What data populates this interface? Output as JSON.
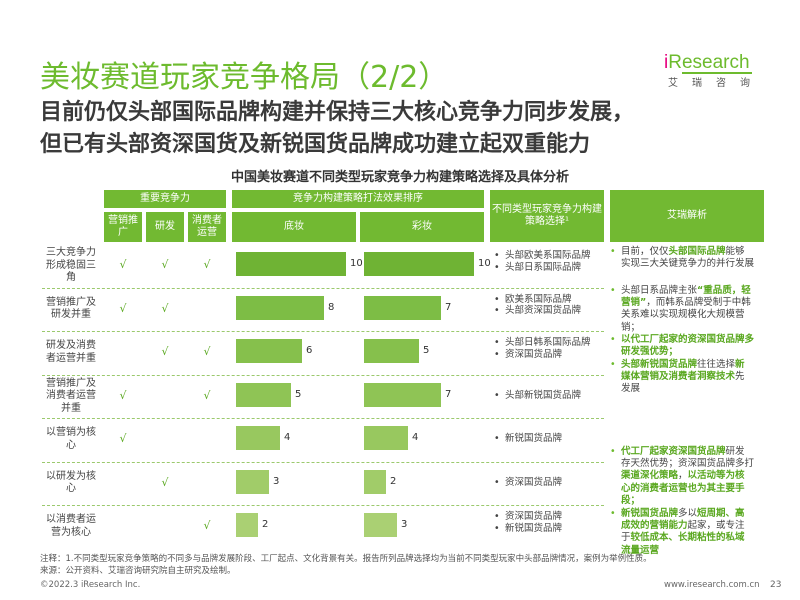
{
  "title": "美妆赛道玩家竞争格局（2/2）",
  "logo": {
    "brand_i": "i",
    "brand_rest": "Research",
    "cn": "艾瑞咨询"
  },
  "subtitle": [
    "目前仍仅头部国际品牌构建并保持三大核心竞争力同步发展，",
    "但已有头部资深国货及新锐国货品牌成功建立起双重能力"
  ],
  "chart_title": "中国美妆赛道不同类型玩家竞争力构建策略选择及具体分析",
  "headers": {
    "core": "重要竞争力",
    "effect": "竞争力构建策略打法效果排序",
    "types": "不同类型玩家竞争力构建策略选择¹",
    "analysis": "艾瑞解析",
    "marketing": "营销推广",
    "rd": "研发",
    "consumer_ops": "消费者运营",
    "base": "底妆",
    "color": "彩妆"
  },
  "check_mark": "√",
  "chart_data": {
    "type": "bar",
    "categories": [
      "三大竞争力形成稳固三角",
      "营销推广及研发并重",
      "研发及消费者运营并重",
      "营销推广及消费者运营并重",
      "以营销为核心",
      "以研发为核心",
      "以消费者运营为核心"
    ],
    "checks": [
      [
        true,
        true,
        true
      ],
      [
        true,
        true,
        false
      ],
      [
        false,
        true,
        true
      ],
      [
        true,
        false,
        true
      ],
      [
        true,
        false,
        false
      ],
      [
        false,
        true,
        false
      ],
      [
        false,
        false,
        true
      ]
    ],
    "series": [
      {
        "name": "底妆",
        "values": [
          10,
          8,
          6,
          5,
          4,
          3,
          2
        ]
      },
      {
        "name": "彩妆",
        "values": [
          10,
          7,
          5,
          7,
          4,
          2,
          3
        ]
      }
    ],
    "xlim": [
      0,
      10
    ]
  },
  "player_types": [
    [
      "头部欧美系国际品牌",
      "头部日系国际品牌"
    ],
    [
      "欧美系国际品牌",
      "头部资深国货品牌"
    ],
    [
      "头部日韩系国际品牌",
      "资深国货品牌"
    ],
    [
      "头部新锐国货品牌"
    ],
    [
      "新锐国货品牌"
    ],
    [
      "资深国货品牌"
    ],
    [
      "资深国货品牌",
      "新锐国货品牌"
    ]
  ],
  "analysis": [
    [
      {
        "t": "目前，仅仅"
      },
      {
        "t": "头部国际品牌",
        "g": true
      },
      {
        "t": "能够实现三大关键竞争力的并行发展"
      }
    ],
    [
      {
        "t": "头部日系品牌主张"
      },
      {
        "t": "“重品质，轻营销”",
        "g": true
      },
      {
        "t": "，而韩系品牌受制于中韩关系难以实现规模化大规模营销；"
      }
    ],
    [
      {
        "t": "以代工厂起家的资深国货品牌多研发强优势；",
        "g": true
      }
    ],
    [
      {
        "t": "头部新锐国货品牌",
        "g": true
      },
      {
        "t": "往往选择"
      },
      {
        "t": "新媒体营销及消费者洞察技术",
        "g": true
      },
      {
        "t": "先发展"
      }
    ],
    [
      {
        "t": "代工厂起家资深国货品牌",
        "g": true
      },
      {
        "t": "研发存天然优势；资深国货品牌多打"
      },
      {
        "t": "渠道深化策略",
        "g": true
      },
      {
        "t": "，"
      },
      {
        "t": "以活动等为核心的消费者运营也为其主要手段；",
        "g": true
      }
    ],
    [
      {
        "t": "新锐国货品牌",
        "g": true
      },
      {
        "t": "多以"
      },
      {
        "t": "短周期、高成效的营销能力",
        "g": true
      },
      {
        "t": "起家，或专注于"
      },
      {
        "t": "较低成本、长期粘性的私域流量运营",
        "g": true
      }
    ]
  ],
  "note": "注释：1.不同类型玩家竞争策略的不同多与品牌发展阶段、工厂起点、文化背景有关。报告所列品牌选择均为当前不同类型玩家中头部品牌情况，案例为举例性质。",
  "source": "来源：公开资料、艾瑞咨询研究院自主研究及绘制。",
  "copyright": "©2022.3 iResearch Inc.",
  "url": "www.iresearch.com.cn",
  "page": "23"
}
